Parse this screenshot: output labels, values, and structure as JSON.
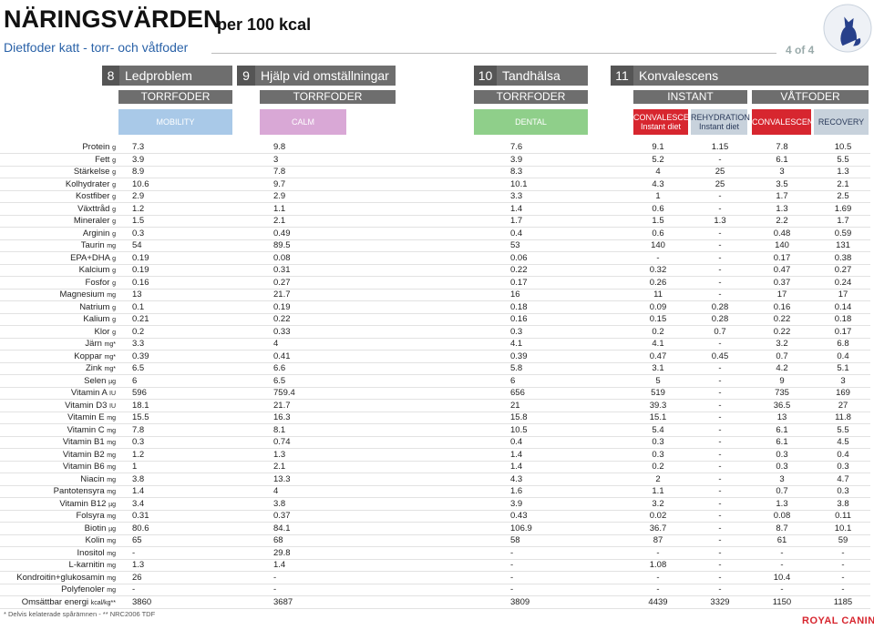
{
  "header": {
    "title": "NÄRINGSVÄRDEN",
    "title_suffix": "per 100 kcal",
    "subtitle": "Dietfoder katt - torr- och våtfoder",
    "page": "4 of 4"
  },
  "sections": [
    {
      "number": "8",
      "name": "Ledproblem"
    },
    {
      "number": "9",
      "name": "Hjälp vid omställningar"
    },
    {
      "number": "10",
      "name": "Tandhälsa"
    },
    {
      "number": "11",
      "name": "Konvalescens"
    }
  ],
  "formats": [
    "TORRFODER",
    "TORRFODER",
    "TORRFODER",
    "INSTANT",
    "VÅTFODER"
  ],
  "products": [
    {
      "name": "MOBILITY"
    },
    {
      "name": "CALM"
    },
    {
      "name": "DENTAL"
    },
    {
      "name": "CONVALESCENCE SUPPORT",
      "note": "Instant diet"
    },
    {
      "name": "REHYDRATION",
      "note": "Instant diet"
    },
    {
      "name": "CONVALESCENCE SUPPORT"
    },
    {
      "name": "RECOVERY"
    }
  ],
  "table": {
    "rows": [
      {
        "label": "Protein",
        "unit": "g",
        "values": [
          "7.3",
          "9.8",
          "7.6",
          "9.1",
          "1.15",
          "7.8",
          "10.5"
        ]
      },
      {
        "label": "Fett",
        "unit": "g",
        "values": [
          "3.9",
          "3",
          "3.9",
          "5.2",
          "-",
          "6.1",
          "5.5"
        ]
      },
      {
        "label": "Stärkelse",
        "unit": "g",
        "values": [
          "8.9",
          "7.8",
          "8.3",
          "4",
          "25",
          "3",
          "1.3"
        ]
      },
      {
        "label": "Kolhydrater",
        "unit": "g",
        "values": [
          "10.6",
          "9.7",
          "10.1",
          "4.3",
          "25",
          "3.5",
          "2.1"
        ]
      },
      {
        "label": "Kostfiber",
        "unit": "g",
        "values": [
          "2.9",
          "2.9",
          "3.3",
          "1",
          "-",
          "1.7",
          "2.5"
        ]
      },
      {
        "label": "Växttråd",
        "unit": "g",
        "values": [
          "1.2",
          "1.1",
          "1.4",
          "0.6",
          "-",
          "1.3",
          "1.69"
        ]
      },
      {
        "label": "Mineraler",
        "unit": "g",
        "values": [
          "1.5",
          "2.1",
          "1.7",
          "1.5",
          "1.3",
          "2.2",
          "1.7"
        ]
      },
      {
        "label": "Arginin",
        "unit": "g",
        "values": [
          "0.3",
          "0.49",
          "0.4",
          "0.6",
          "-",
          "0.48",
          "0.59"
        ]
      },
      {
        "label": "Taurin",
        "unit": "mg",
        "values": [
          "54",
          "89.5",
          "53",
          "140",
          "-",
          "140",
          "131"
        ]
      },
      {
        "label": "EPA+DHA",
        "unit": "g",
        "values": [
          "0.19",
          "0.08",
          "0.06",
          "-",
          "-",
          "0.17",
          "0.38"
        ]
      },
      {
        "label": "Kalcium",
        "unit": "g",
        "values": [
          "0.19",
          "0.31",
          "0.22",
          "0.32",
          "-",
          "0.47",
          "0.27"
        ]
      },
      {
        "label": "Fosfor",
        "unit": "g",
        "values": [
          "0.16",
          "0.27",
          "0.17",
          "0.26",
          "-",
          "0.37",
          "0.24"
        ]
      },
      {
        "label": "Magnesium",
        "unit": "mg",
        "values": [
          "13",
          "21.7",
          "16",
          "11",
          "-",
          "17",
          "17"
        ]
      },
      {
        "label": "Natrium",
        "unit": "g",
        "values": [
          "0.1",
          "0.19",
          "0.18",
          "0.09",
          "0.28",
          "0.16",
          "0.14"
        ]
      },
      {
        "label": "Kalium",
        "unit": "g",
        "values": [
          "0.21",
          "0.22",
          "0.16",
          "0.15",
          "0.28",
          "0.22",
          "0.18"
        ]
      },
      {
        "label": "Klor",
        "unit": "g",
        "values": [
          "0.2",
          "0.33",
          "0.3",
          "0.2",
          "0.7",
          "0.22",
          "0.17"
        ]
      },
      {
        "label": "Järn",
        "unit": "mg*",
        "values": [
          "3.3",
          "4",
          "4.1",
          "4.1",
          "-",
          "3.2",
          "6.8"
        ]
      },
      {
        "label": "Koppar",
        "unit": "mg*",
        "values": [
          "0.39",
          "0.41",
          "0.39",
          "0.47",
          "0.45",
          "0.7",
          "0.4"
        ]
      },
      {
        "label": "Zink",
        "unit": "mg*",
        "values": [
          "6.5",
          "6.6",
          "5.8",
          "3.1",
          "-",
          "4.2",
          "5.1"
        ]
      },
      {
        "label": "Selen",
        "unit": "µg",
        "values": [
          "6",
          "6.5",
          "6",
          "5",
          "-",
          "9",
          "3"
        ]
      },
      {
        "label": "Vitamin A",
        "unit": "IU",
        "values": [
          "596",
          "759.4",
          "656",
          "519",
          "-",
          "735",
          "169"
        ]
      },
      {
        "label": "Vitamin D3",
        "unit": "IU",
        "values": [
          "18.1",
          "21.7",
          "21",
          "39.3",
          "-",
          "36.5",
          "27"
        ]
      },
      {
        "label": "Vitamin E",
        "unit": "mg",
        "values": [
          "15.5",
          "16.3",
          "15.8",
          "15.1",
          "-",
          "13",
          "11.8"
        ]
      },
      {
        "label": "Vitamin C",
        "unit": "mg",
        "values": [
          "7.8",
          "8.1",
          "10.5",
          "5.4",
          "-",
          "6.1",
          "5.5"
        ]
      },
      {
        "label": "Vitamin B1",
        "unit": "mg",
        "values": [
          "0.3",
          "0.74",
          "0.4",
          "0.3",
          "-",
          "6.1",
          "4.5"
        ]
      },
      {
        "label": "Vitamin B2",
        "unit": "mg",
        "values": [
          "1.2",
          "1.3",
          "1.4",
          "0.3",
          "-",
          "0.3",
          "0.4"
        ]
      },
      {
        "label": "Vitamin B6",
        "unit": "mg",
        "values": [
          "1",
          "2.1",
          "1.4",
          "0.2",
          "-",
          "0.3",
          "0.3"
        ]
      },
      {
        "label": "Niacin",
        "unit": "mg",
        "values": [
          "3.8",
          "13.3",
          "4.3",
          "2",
          "-",
          "3",
          "4.7"
        ]
      },
      {
        "label": "Pantotensyra",
        "unit": "mg",
        "values": [
          "1.4",
          "4",
          "1.6",
          "1.1",
          "-",
          "0.7",
          "0.3"
        ]
      },
      {
        "label": "Vitamin B12",
        "unit": "µg",
        "values": [
          "3.4",
          "3.8",
          "3.9",
          "3.2",
          "-",
          "1.3",
          "3.8"
        ]
      },
      {
        "label": "Folsyra",
        "unit": "mg",
        "values": [
          "0.31",
          "0.37",
          "0.43",
          "0.02",
          "-",
          "0.08",
          "0.11"
        ]
      },
      {
        "label": "Biotin",
        "unit": "µg",
        "values": [
          "80.6",
          "84.1",
          "106.9",
          "36.7",
          "-",
          "8.7",
          "10.1"
        ]
      },
      {
        "label": "Kolin",
        "unit": "mg",
        "values": [
          "65",
          "68",
          "58",
          "87",
          "-",
          "61",
          "59"
        ]
      },
      {
        "label": "Inositol",
        "unit": "mg",
        "values": [
          "-",
          "29.8",
          "-",
          "-",
          "-",
          "-",
          "-"
        ]
      },
      {
        "label": "L-karnitin",
        "unit": "mg",
        "values": [
          "1.3",
          "1.4",
          "-",
          "1.08",
          "-",
          "-",
          "-"
        ]
      },
      {
        "label": "Kondroitin+glukosamin",
        "unit": "mg",
        "values": [
          "26",
          "-",
          "-",
          "-",
          "-",
          "10.4",
          "-"
        ]
      },
      {
        "label": "Polyfenoler",
        "unit": "mg",
        "values": [
          "-",
          "-",
          "-",
          "-",
          "-",
          "-",
          "-"
        ]
      },
      {
        "label": "Omsättbar energi",
        "unit": "kcal/kg**",
        "values": [
          "3860",
          "3687",
          "3809",
          "4439",
          "3329",
          "1150",
          "1185"
        ]
      }
    ]
  },
  "footer": {
    "note": "* Delvis kelaterade spårämnen - ** NRC2006 TDF",
    "brand": "ROYAL CANIN"
  }
}
